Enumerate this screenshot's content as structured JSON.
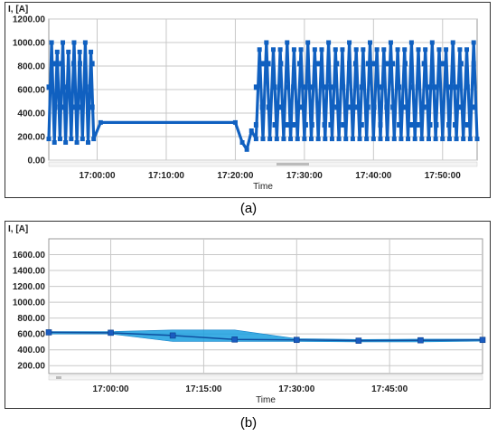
{
  "chart_data": [
    {
      "type": "line",
      "panel": "a",
      "ylabel": "I, [A]",
      "xlabel": "Time",
      "y_ticks": [
        "1200.00",
        "1000.00",
        "800.00",
        "600.00",
        "400.00",
        "200.00",
        "0.00"
      ],
      "x_ticks": [
        "17:00:00",
        "17:10:00",
        "17:20:00",
        "17:30:00",
        "17:40:00",
        "17:50:00"
      ],
      "ylim": [
        0,
        1200
      ],
      "xlim": [
        "16:53:00",
        "17:55:00"
      ],
      "grid": true,
      "series": [
        {
          "oscillation_min": 150,
          "oscillation_max": 1000,
          "x": [
            "16:53:00",
            "16:56:00",
            "16:59:30",
            "17:00:30",
            "17:05:00",
            "17:10:00",
            "17:15:00",
            "17:20:00",
            "17:21:30",
            "17:22:30",
            "17:23:30",
            "17:30:00",
            "17:40:00",
            "17:50:00",
            "17:55:00"
          ],
          "y": [
            300,
            600,
            550,
            320,
            320,
            320,
            320,
            320,
            150,
            250,
            600,
            600,
            580,
            570,
            330
          ]
        }
      ]
    },
    {
      "type": "area",
      "panel": "b",
      "ylabel": "I, [A]",
      "xlabel": "Time",
      "y_ticks": [
        "1600.00",
        "1400.00",
        "1200.00",
        "1000.00",
        "800.00",
        "600.00",
        "400.00",
        "200.00"
      ],
      "x_ticks": [
        "17:00:00",
        "17:15:00",
        "17:30:00",
        "17:45:00"
      ],
      "ylim": [
        100,
        1800
      ],
      "xlim": [
        "16:50:00",
        "18:00:00"
      ],
      "grid": true,
      "series": [
        {
          "x": [
            "16:50:00",
            "17:00:00",
            "17:10:00",
            "17:20:00",
            "17:30:00",
            "17:40:00",
            "17:50:00",
            "18:00:00"
          ],
          "y": [
            620,
            615,
            580,
            530,
            525,
            515,
            520,
            525
          ],
          "upper": [
            630,
            630,
            650,
            650,
            540,
            530,
            535,
            535
          ],
          "lower": [
            600,
            600,
            505,
            505,
            505,
            500,
            500,
            510
          ]
        }
      ]
    }
  ],
  "captions": {
    "a": "(a)",
    "b": "(b)"
  },
  "colors": {
    "series": "#1060c0",
    "band": "#1a9fdf",
    "grid": "#c8c8c8"
  }
}
